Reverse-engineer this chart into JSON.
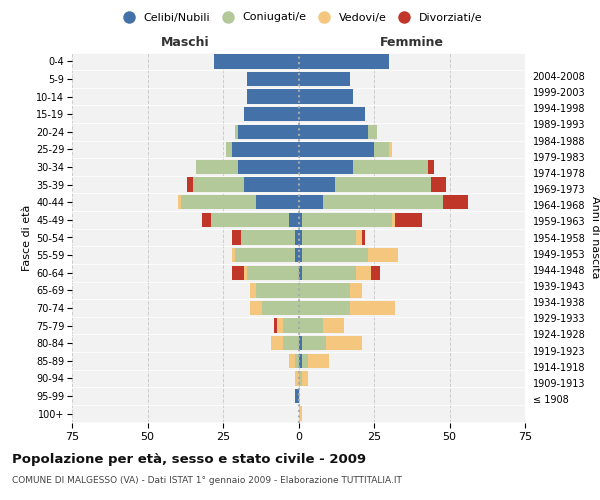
{
  "age_groups": [
    "100+",
    "95-99",
    "90-94",
    "85-89",
    "80-84",
    "75-79",
    "70-74",
    "65-69",
    "60-64",
    "55-59",
    "50-54",
    "45-49",
    "40-44",
    "35-39",
    "30-34",
    "25-29",
    "20-24",
    "15-19",
    "10-14",
    "5-9",
    "0-4"
  ],
  "birth_years": [
    "≤ 1908",
    "1909-1913",
    "1914-1918",
    "1919-1923",
    "1924-1928",
    "1929-1933",
    "1934-1938",
    "1939-1943",
    "1944-1948",
    "1949-1953",
    "1954-1958",
    "1959-1963",
    "1964-1968",
    "1969-1973",
    "1974-1978",
    "1979-1983",
    "1984-1988",
    "1989-1993",
    "1994-1998",
    "1999-2003",
    "2004-2008"
  ],
  "maschi": {
    "celibi": [
      0,
      1,
      0,
      0,
      0,
      0,
      0,
      0,
      0,
      1,
      1,
      3,
      14,
      18,
      20,
      22,
      20,
      18,
      17,
      17,
      28
    ],
    "coniugati": [
      0,
      0,
      0,
      1,
      5,
      5,
      12,
      14,
      17,
      20,
      18,
      26,
      25,
      17,
      14,
      2,
      1,
      0,
      0,
      0,
      0
    ],
    "vedovi": [
      0,
      0,
      1,
      2,
      4,
      2,
      4,
      2,
      1,
      1,
      0,
      0,
      1,
      0,
      0,
      0,
      0,
      0,
      0,
      0,
      0
    ],
    "divorziati": [
      0,
      0,
      0,
      0,
      0,
      1,
      0,
      0,
      4,
      0,
      3,
      3,
      0,
      2,
      0,
      0,
      0,
      0,
      0,
      0,
      0
    ]
  },
  "femmine": {
    "nubili": [
      0,
      0,
      0,
      1,
      1,
      0,
      0,
      0,
      1,
      1,
      1,
      1,
      8,
      12,
      18,
      25,
      23,
      22,
      18,
      17,
      30
    ],
    "coniugate": [
      0,
      0,
      1,
      2,
      8,
      8,
      17,
      17,
      18,
      22,
      18,
      30,
      40,
      32,
      25,
      5,
      3,
      0,
      0,
      0,
      0
    ],
    "vedove": [
      1,
      0,
      2,
      7,
      12,
      7,
      15,
      4,
      5,
      10,
      2,
      1,
      0,
      0,
      0,
      1,
      0,
      0,
      0,
      0,
      0
    ],
    "divorziate": [
      0,
      0,
      0,
      0,
      0,
      0,
      0,
      0,
      3,
      0,
      1,
      9,
      8,
      5,
      2,
      0,
      0,
      0,
      0,
      0,
      0
    ]
  },
  "colors": {
    "celibi": "#4472a8",
    "coniugati": "#b3c99a",
    "vedovi": "#f5c67e",
    "divorziati": "#c0372a"
  },
  "xlim": 75,
  "title": "Popolazione per età, sesso e stato civile - 2009",
  "subtitle": "COMUNE DI MALGESSO (VA) - Dati ISTAT 1° gennaio 2009 - Elaborazione TUTTITALIA.IT",
  "legend_labels": [
    "Celibi/Nubili",
    "Coniugati/e",
    "Vedovi/e",
    "Divorziati/e"
  ],
  "ylabel_left": "Fasce di età",
  "ylabel_right": "Anni di nascita",
  "xlabel_left": "Maschi",
  "xlabel_right": "Femmine",
  "bg_color": "#f2f2f2"
}
